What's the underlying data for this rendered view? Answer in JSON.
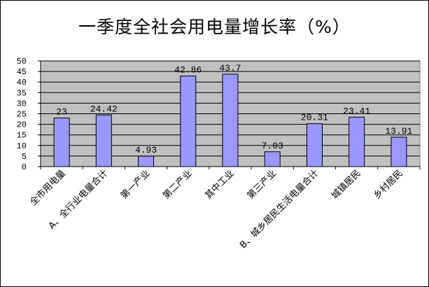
{
  "chart_data": {
    "type": "bar",
    "title": "一季度全社会用电量增长率（%）",
    "categories": [
      "全市用电量",
      "A、全行业电量合计",
      "第一产业",
      "第二产业",
      "其中工业",
      "第三产业",
      "B、城乡居民生活电量合计",
      "城镇居民",
      "乡村居民"
    ],
    "values": [
      23,
      24.42,
      4.93,
      42.86,
      43.7,
      7.03,
      20.31,
      23.41,
      13.91
    ],
    "data_labels": [
      "23",
      "24.42",
      "4.93",
      "42.86",
      "43.7",
      "7.03",
      "20.31",
      "23.41",
      "13.91"
    ],
    "ylim": [
      0,
      50
    ],
    "yticks": [
      "0",
      "5",
      "10",
      "15",
      "20",
      "25",
      "30",
      "35",
      "40",
      "45",
      "50"
    ],
    "grid": true,
    "bar_color": "#9999ff",
    "plot_bg": "#c0c0c0"
  }
}
